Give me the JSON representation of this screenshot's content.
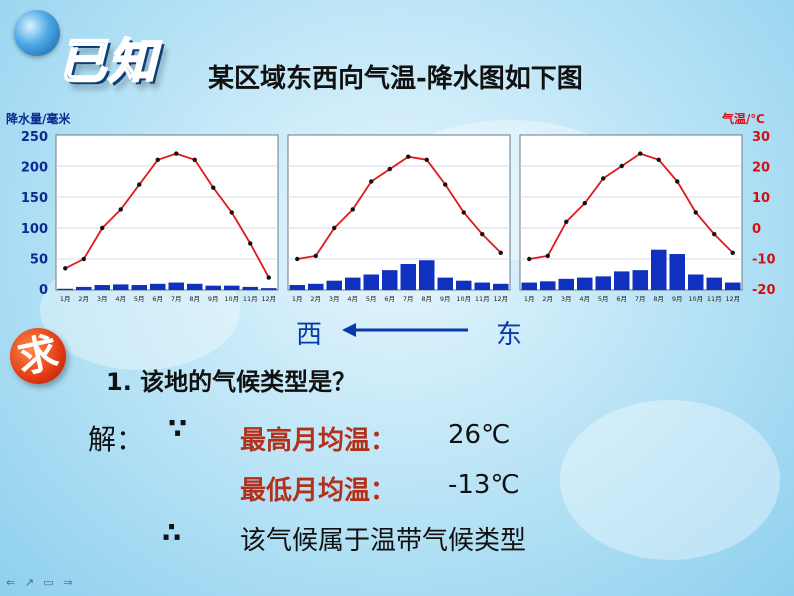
{
  "header": {
    "known_label": "已知",
    "title": "某区域东西向气温-降水图如下图"
  },
  "axes": {
    "left_title": "降水量/毫米",
    "right_title": "气温/℃",
    "left_ticks": [
      "250",
      "200",
      "150",
      "100",
      "50",
      "0"
    ],
    "right_ticks": [
      "30",
      "20",
      "10",
      "0",
      "-10",
      "-20"
    ]
  },
  "direction": {
    "west": "西",
    "east": "东"
  },
  "question": {
    "badge": "求",
    "text": "1. 该地的气候类型是？"
  },
  "solution": {
    "prefix": "解：",
    "because": "∵",
    "max_label": "最高月均温：",
    "max_value": "26℃",
    "min_label": "最低月均温：",
    "min_value": "-13℃",
    "therefore": "∴",
    "conclusion": "该气候属于温带气候类型"
  },
  "nav": {
    "controls": "⇐ ↗ ▭ ⇒"
  },
  "colors": {
    "bar": "#1030c0",
    "line": "#e01a1a",
    "left_axis": "#0a2a8f",
    "right_axis": "#d11111"
  },
  "chart_data": [
    {
      "type": "bar+line",
      "categories": [
        "1月",
        "2月",
        "3月",
        "4月",
        "5月",
        "6月",
        "7月",
        "8月",
        "9月",
        "10月",
        "11月",
        "12月"
      ],
      "precip_ylim": [
        0,
        250
      ],
      "temp_ylim": [
        -20,
        30
      ],
      "series": [
        {
          "axis": "left",
          "type": "bar",
          "values": [
            2,
            5,
            8,
            9,
            8,
            10,
            12,
            10,
            7,
            7,
            5,
            3
          ]
        },
        {
          "axis": "right",
          "type": "line",
          "values": [
            -13,
            -10,
            0,
            6,
            14,
            22,
            24,
            22,
            13,
            5,
            -5,
            -16
          ]
        }
      ]
    },
    {
      "type": "bar+line",
      "categories": [
        "1月",
        "2月",
        "3月",
        "4月",
        "5月",
        "6月",
        "7月",
        "8月",
        "9月",
        "10月",
        "11月",
        "12月"
      ],
      "precip_ylim": [
        0,
        250
      ],
      "temp_ylim": [
        -20,
        30
      ],
      "series": [
        {
          "axis": "left",
          "type": "bar",
          "values": [
            8,
            10,
            15,
            20,
            25,
            32,
            42,
            48,
            20,
            15,
            12,
            10
          ]
        },
        {
          "axis": "right",
          "type": "line",
          "values": [
            -10,
            -9,
            0,
            6,
            15,
            19,
            23,
            22,
            14,
            5,
            -2,
            -8
          ]
        }
      ]
    },
    {
      "type": "bar+line",
      "categories": [
        "1月",
        "2月",
        "3月",
        "4月",
        "5月",
        "6月",
        "7月",
        "8月",
        "9月",
        "10月",
        "11月",
        "12月"
      ],
      "precip_ylim": [
        0,
        250
      ],
      "temp_ylim": [
        -20,
        30
      ],
      "series": [
        {
          "axis": "left",
          "type": "bar",
          "values": [
            12,
            14,
            18,
            20,
            22,
            30,
            32,
            65,
            58,
            25,
            20,
            12
          ]
        },
        {
          "axis": "right",
          "type": "line",
          "values": [
            -10,
            -9,
            2,
            8,
            16,
            20,
            24,
            22,
            15,
            5,
            -2,
            -8
          ]
        }
      ]
    }
  ]
}
